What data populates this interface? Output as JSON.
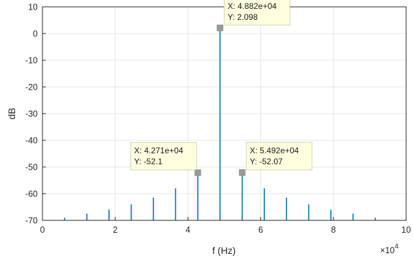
{
  "chart_data": {
    "type": "stem",
    "xlabel": "f (Hz)",
    "ylabel": "dB",
    "x_multiplier": "×10",
    "x_multiplier_exp": "4",
    "xlim": [
      0,
      100000
    ],
    "ylim": [
      -70,
      10
    ],
    "grid": true,
    "x_ticks": [
      0,
      20000,
      40000,
      60000,
      80000,
      100000
    ],
    "x_tick_labels": [
      "0",
      "2",
      "4",
      "6",
      "8",
      "10"
    ],
    "y_ticks": [
      -70,
      -60,
      -50,
      -40,
      -30,
      -20,
      -10,
      0,
      10
    ],
    "y_tick_labels": [
      "-70",
      "-60",
      "-50",
      "-40",
      "-30",
      "-20",
      "-10",
      "0",
      "10"
    ],
    "series": [
      {
        "color": "#0072bd",
        "x": [
          6100,
          12200,
          18300,
          24400,
          30500,
          36600,
          42710,
          48820,
          54920,
          61000,
          67100,
          73200,
          79300,
          85400,
          91500
        ],
        "y": [
          -69,
          -67.5,
          -66,
          -64,
          -61.5,
          -58,
          -52.1,
          2.098,
          -52.07,
          -58,
          -61.5,
          -64,
          -66,
          -67.5,
          -69
        ]
      }
    ],
    "datatips": [
      {
        "x": 48820,
        "y": 2.098,
        "label_x": "X: 4.882e+04",
        "label_y": "Y: 2.098",
        "side": "right"
      },
      {
        "x": 42710,
        "y": -52.1,
        "label_x": "X: 4.271e+04",
        "label_y": "Y: -52.1",
        "side": "left"
      },
      {
        "x": 54920,
        "y": -52.07,
        "label_x": "X: 5.492e+04",
        "label_y": "Y: -52.07",
        "side": "right"
      }
    ]
  }
}
